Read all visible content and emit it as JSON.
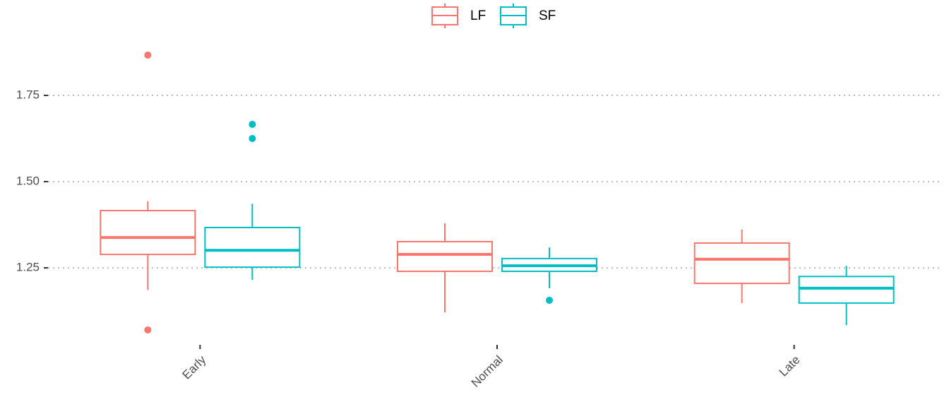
{
  "chart_data": {
    "type": "box",
    "categories": [
      "Early",
      "Normal",
      "Late"
    ],
    "series": [
      {
        "name": "LF",
        "color": "#f8766d",
        "boxes": [
          {
            "low": 1.186,
            "q1": 1.289,
            "median": 1.338,
            "q3": 1.416,
            "high": 1.443,
            "outliers": [
              1.867,
              1.07
            ]
          },
          {
            "low": 1.121,
            "q1": 1.24,
            "median": 1.289,
            "q3": 1.326,
            "high": 1.379,
            "outliers": []
          },
          {
            "low": 1.148,
            "q1": 1.205,
            "median": 1.275,
            "q3": 1.322,
            "high": 1.361,
            "outliers": []
          }
        ]
      },
      {
        "name": "SF",
        "color": "#00bfc4",
        "boxes": [
          {
            "low": 1.215,
            "q1": 1.252,
            "median": 1.301,
            "q3": 1.367,
            "high": 1.436,
            "outliers": [
              1.666,
              1.625
            ]
          },
          {
            "low": 1.191,
            "q1": 1.24,
            "median": 1.256,
            "q3": 1.277,
            "high": 1.309,
            "outliers": [
              1.156
            ]
          },
          {
            "low": 1.084,
            "q1": 1.148,
            "median": 1.191,
            "q3": 1.225,
            "high": 1.256,
            "outliers": []
          }
        ]
      }
    ],
    "ylim": [
      1.033,
      1.914
    ],
    "yticks": [
      {
        "value": 1.25,
        "label": "1.25"
      },
      {
        "value": 1.5,
        "label": "1.50"
      },
      {
        "value": 1.75,
        "label": "1.75"
      }
    ],
    "grid": true,
    "legend": "top"
  }
}
